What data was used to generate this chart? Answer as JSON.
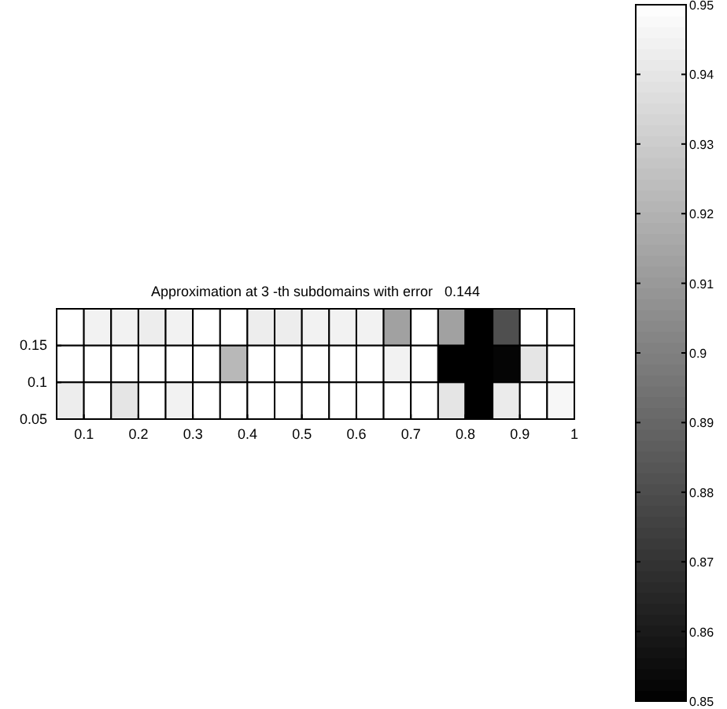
{
  "chart_data": {
    "type": "heatmap",
    "title": "Approximation at 3 -th subdomains with error   0.144",
    "xlim": [
      0.05,
      1
    ],
    "xticks": [
      {
        "value": 0.05,
        "label": null
      },
      0.1,
      0.2,
      0.3,
      0.4,
      0.5,
      0.6,
      0.7,
      0.8,
      0.9,
      1
    ],
    "ylim": [
      0.05,
      0.2
    ],
    "yticks": [
      0.05,
      0.1,
      0.15,
      {
        "value": 0.2,
        "label": null
      }
    ],
    "cells": [
      [
        0.95,
        0.945,
        0.945,
        0.943,
        0.945,
        0.95,
        0.95,
        0.943,
        0.943,
        0.945,
        0.945,
        0.945,
        0.913,
        0.95,
        0.913,
        0.85,
        0.881,
        0.95,
        0.95
      ],
      [
        0.95,
        0.95,
        0.95,
        0.95,
        0.95,
        0.95,
        0.922,
        0.95,
        0.95,
        0.95,
        0.95,
        0.95,
        0.945,
        0.95,
        0.85,
        0.85,
        0.852,
        0.94,
        0.95
      ],
      [
        0.943,
        0.95,
        0.94,
        0.95,
        0.945,
        0.95,
        0.95,
        0.95,
        0.95,
        0.95,
        0.95,
        0.95,
        0.95,
        0.95,
        0.94,
        0.85,
        0.942,
        0.95,
        0.947
      ]
    ],
    "clim": [
      0.85,
      0.95
    ],
    "cticks": [
      0.85,
      0.86,
      0.87,
      0.88,
      0.89,
      0.9,
      0.91,
      0.92,
      0.93,
      0.94,
      0.95
    ]
  }
}
